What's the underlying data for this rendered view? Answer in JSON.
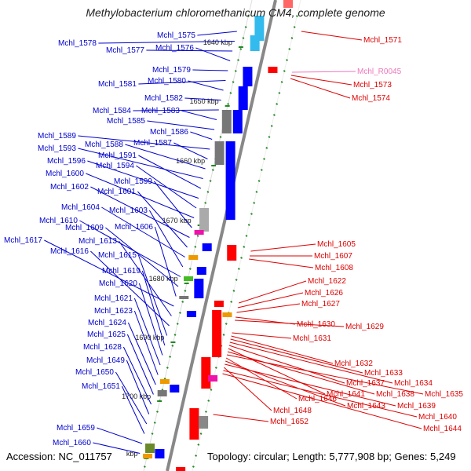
{
  "title": "Methylobacterium chloromethanicum CM4, complete genome",
  "footer": {
    "accession": "Accession: NC_011757",
    "summary": "Topology: circular; Length: 5,777,908 bp; Genes: 5,249"
  },
  "colors": {
    "plus_label": "#0000cc",
    "minus_label": "#dd0000",
    "rna_label": "#ee77bb",
    "axis": "#888888",
    "tick": "#228822"
  },
  "ticks": [
    "1640 kbp",
    "1650 kbp",
    "1660 kbp",
    "1670 kbp",
    "1680 kbp",
    "1690 kbp",
    "1700 kbp",
    "kbp"
  ],
  "plus_genes": [
    "Mchl_1575",
    "Mchl_1578",
    "Mchl_1577",
    "Mchl_1576",
    "Mchl_1579",
    "Mchl_1581",
    "Mchl_1580",
    "Mchl_1582",
    "Mchl_1584",
    "Mchl_1583",
    "Mchl_1585",
    "Mchl_1586",
    "Mchl_1589",
    "Mchl_1587",
    "Mchl_1588",
    "Mchl_1593",
    "Mchl_1591",
    "Mchl_1596",
    "Mchl_1594",
    "Mchl_1600",
    "Mchl_1599",
    "Mchl_1602",
    "Mchl_1601",
    "Mchl_1604",
    "Mchl_1603",
    "Mchl_1610",
    "Mchl_1609",
    "Mchl_1606",
    "Mchl_1617",
    "Mchl_1613",
    "Mchl_1616",
    "Mchl_1615",
    "Mchl_1619",
    "Mchl_1620",
    "Mchl_1621",
    "Mchl_1623",
    "Mchl_1624",
    "Mchl_1625",
    "Mchl_1628",
    "Mchl_1649",
    "Mchl_1650",
    "Mchl_1651",
    "Mchl_1659",
    "Mchl_1660"
  ],
  "minus_genes": [
    "Mchl_1571",
    "Mchl_R0045",
    "Mchl_1573",
    "Mchl_1574",
    "Mchl_1605",
    "Mchl_1607",
    "Mchl_1608",
    "Mchl_1622",
    "Mchl_1626",
    "Mchl_1627",
    "Mchl_1630",
    "Mchl_1629",
    "Mchl_1631",
    "Mchl_1632",
    "Mchl_1633",
    "Mchl_1634",
    "Mchl_1637",
    "Mchl_1641",
    "Mchl_1638",
    "Mchl_1635",
    "Mchl_1646",
    "Mchl_1643",
    "Mchl_1639",
    "Mchl_1648",
    "Mchl_1640",
    "Mchl_1652",
    "Mchl_1644"
  ]
}
